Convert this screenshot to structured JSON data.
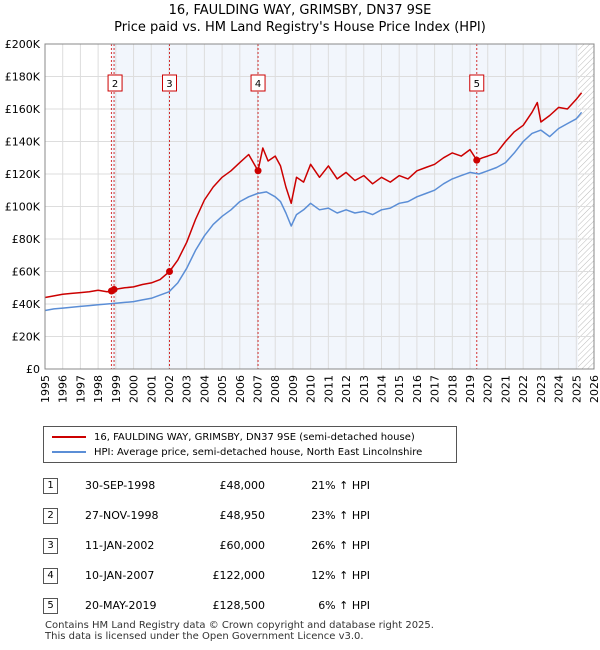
{
  "title": "16, FAULDING WAY, GRIMSBY, DN37 9SE",
  "subtitle": "Price paid vs. HM Land Registry's House Price Index (HPI)",
  "colors": {
    "property": "#cc0000",
    "hpi": "#5b8ed6",
    "marker_line": "#cc0000",
    "grid": "#dddddd",
    "hatch": "#bbbbbb",
    "shade": "#e8eefa"
  },
  "legend": {
    "property_label": "16, FAULDING WAY, GRIMSBY, DN37 9SE (semi-detached house)",
    "hpi_label": "HPI: Average price, semi-detached house, North East Lincolnshire"
  },
  "transactions": [
    {
      "num": "1",
      "date": "30-SEP-1998",
      "price": "£48,000",
      "hpi": "21% ↑ HPI"
    },
    {
      "num": "2",
      "date": "27-NOV-1998",
      "price": "£48,950",
      "hpi": "23% ↑ HPI"
    },
    {
      "num": "3",
      "date": "11-JAN-2002",
      "price": "£60,000",
      "hpi": "26% ↑ HPI"
    },
    {
      "num": "4",
      "date": "10-JAN-2007",
      "price": "£122,000",
      "hpi": "12% ↑ HPI"
    },
    {
      "num": "5",
      "date": "20-MAY-2019",
      "price": "£128,500",
      "hpi": "6% ↑ HPI"
    }
  ],
  "footer": {
    "line1": "Contains HM Land Registry data © Crown copyright and database right 2025.",
    "line2": "This data is licensed under the Open Government Licence v3.0."
  },
  "chart_data": {
    "type": "line",
    "title": "16, FAULDING WAY, GRIMSBY, DN37 9SE",
    "subtitle": "Price paid vs. HM Land Registry's House Price Index (HPI)",
    "xlim": [
      1995,
      2026
    ],
    "ylim": [
      0,
      200000
    ],
    "x_ticks": [
      "1995",
      "1996",
      "1997",
      "1998",
      "1999",
      "2000",
      "2001",
      "2002",
      "2003",
      "2004",
      "2005",
      "2006",
      "2007",
      "2008",
      "2009",
      "2010",
      "2011",
      "2012",
      "2013",
      "2014",
      "2015",
      "2016",
      "2017",
      "2018",
      "2019",
      "2020",
      "2021",
      "2022",
      "2023",
      "2024",
      "2025",
      "2026"
    ],
    "y_ticks": [
      {
        "value": 0,
        "label": "£0"
      },
      {
        "value": 20000,
        "label": "£20K"
      },
      {
        "value": 40000,
        "label": "£40K"
      },
      {
        "value": 60000,
        "label": "£60K"
      },
      {
        "value": 80000,
        "label": "£80K"
      },
      {
        "value": 100000,
        "label": "£100K"
      },
      {
        "value": 120000,
        "label": "£120K"
      },
      {
        "value": 140000,
        "label": "£140K"
      },
      {
        "value": 160000,
        "label": "£160K"
      },
      {
        "value": 180000,
        "label": "£180K"
      },
      {
        "value": 200000,
        "label": "£200K"
      }
    ],
    "forecast_from": 2025.1,
    "series": [
      {
        "name": "16, FAULDING WAY, GRIMSBY, DN37 9SE (semi-detached house)",
        "x": [
          1995,
          1995.5,
          1996,
          1996.5,
          1997,
          1997.5,
          1998,
          1998.5,
          1998.75,
          1998.9,
          1999.5,
          2000,
          2000.5,
          2001,
          2001.5,
          2002.03,
          2002.5,
          2003,
          2003.5,
          2004,
          2004.5,
          2005,
          2005.5,
          2006,
          2006.5,
          2007.03,
          2007.3,
          2007.6,
          2008,
          2008.3,
          2008.6,
          2008.9,
          2009.2,
          2009.6,
          2010,
          2010.5,
          2011,
          2011.5,
          2012,
          2012.5,
          2013,
          2013.5,
          2014,
          2014.5,
          2015,
          2015.5,
          2016,
          2016.5,
          2017,
          2017.5,
          2018,
          2018.5,
          2019,
          2019.38,
          2019.7,
          2020,
          2020.5,
          2021,
          2021.5,
          2022,
          2022.5,
          2022.8,
          2023,
          2023.5,
          2024,
          2024.5,
          2025,
          2025.3
        ],
        "values": [
          44000,
          45000,
          46000,
          46500,
          47000,
          47500,
          48500,
          47500,
          48000,
          48950,
          50000,
          50500,
          52000,
          53000,
          55000,
          60000,
          67000,
          78000,
          92000,
          104000,
          112000,
          118000,
          122000,
          127000,
          132000,
          122000,
          136000,
          128000,
          131000,
          125000,
          112000,
          102000,
          118000,
          115000,
          126000,
          118000,
          125000,
          117000,
          121000,
          116000,
          119000,
          114000,
          118000,
          115000,
          119000,
          117000,
          122000,
          124000,
          126000,
          130000,
          133000,
          131000,
          135000,
          128500,
          130000,
          131000,
          133000,
          140000,
          146000,
          150000,
          158000,
          164000,
          152000,
          156000,
          161000,
          160000,
          166000,
          170000
        ]
      },
      {
        "name": "HPI: Average price, semi-detached house, North East Lincolnshire",
        "x": [
          1995,
          1995.5,
          1996,
          1996.5,
          1997,
          1997.5,
          1998,
          1998.5,
          1999,
          1999.5,
          2000,
          2000.5,
          2001,
          2001.5,
          2002,
          2002.5,
          2003,
          2003.5,
          2004,
          2004.5,
          2005,
          2005.5,
          2006,
          2006.5,
          2007,
          2007.5,
          2008,
          2008.3,
          2008.6,
          2008.9,
          2009.2,
          2009.6,
          2010,
          2010.5,
          2011,
          2011.5,
          2012,
          2012.5,
          2013,
          2013.5,
          2014,
          2014.5,
          2015,
          2015.5,
          2016,
          2016.5,
          2017,
          2017.5,
          2018,
          2018.5,
          2019,
          2019.5,
          2020,
          2020.5,
          2021,
          2021.5,
          2022,
          2022.5,
          2023,
          2023.5,
          2024,
          2024.5,
          2025,
          2025.3
        ],
        "values": [
          36000,
          37000,
          37500,
          38000,
          38500,
          39000,
          39500,
          40000,
          40500,
          41000,
          41500,
          42500,
          43500,
          45500,
          47500,
          53000,
          62000,
          73000,
          82000,
          89000,
          94000,
          98000,
          103000,
          106000,
          108000,
          109000,
          106000,
          103000,
          96000,
          88000,
          95000,
          98000,
          102000,
          98000,
          99000,
          96000,
          98000,
          96000,
          97000,
          95000,
          98000,
          99000,
          102000,
          103000,
          106000,
          108000,
          110000,
          114000,
          117000,
          119000,
          121000,
          120000,
          122000,
          124000,
          127000,
          133000,
          140000,
          145000,
          147000,
          143000,
          148000,
          151000,
          154000,
          158000
        ]
      }
    ],
    "markers": [
      {
        "label": "1",
        "x": 1998.75,
        "y": 48000
      },
      {
        "label": "2",
        "x": 1998.9,
        "y": 48950
      },
      {
        "label": "3",
        "x": 2002.03,
        "y": 60000
      },
      {
        "label": "4",
        "x": 2007.03,
        "y": 122000
      },
      {
        "label": "5",
        "x": 2019.38,
        "y": 128500
      }
    ],
    "marker_boxes_shown": [
      "2",
      "3",
      "4",
      "5"
    ]
  }
}
